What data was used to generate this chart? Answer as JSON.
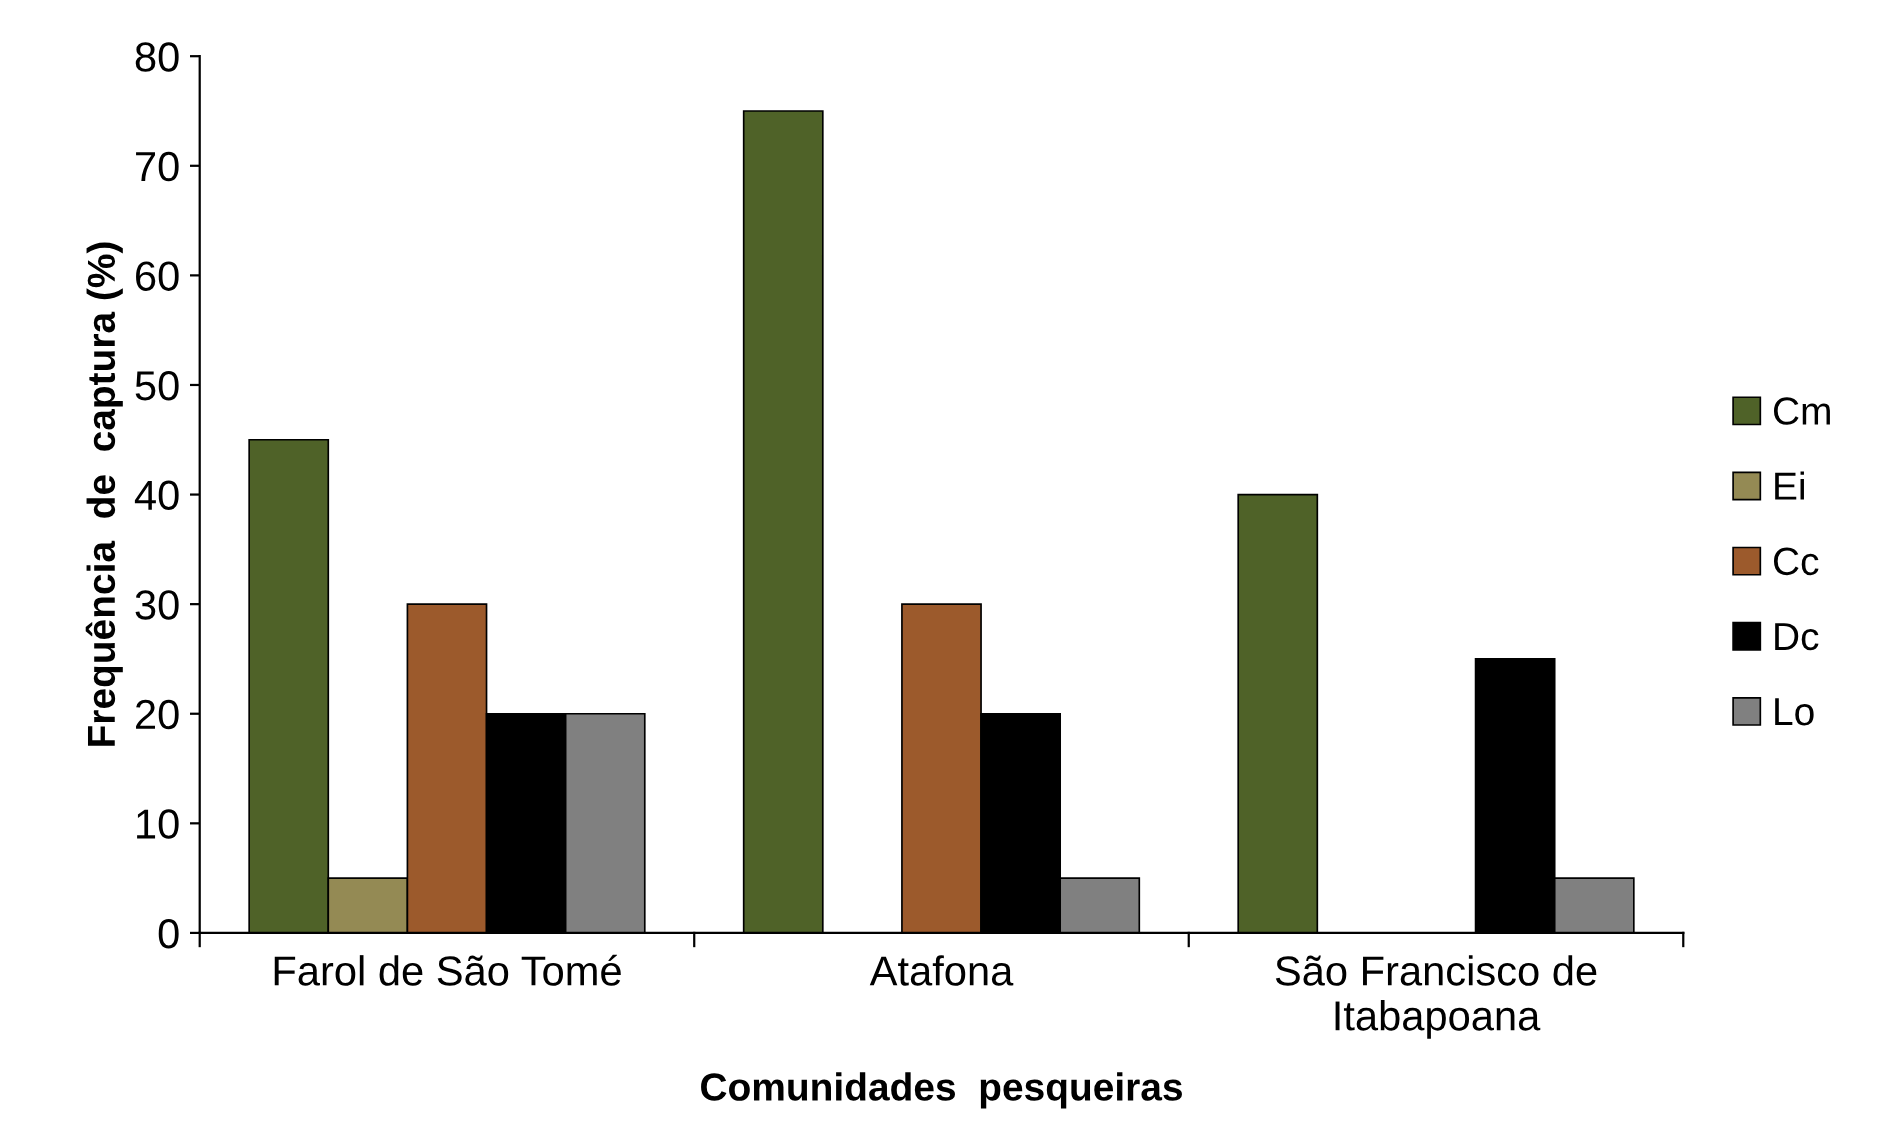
{
  "chart_data": {
    "type": "bar",
    "xlabel": "Comunidades  pesqueiras",
    "ylabel": "Frequência  de  captura (%)",
    "categories": [
      "Farol de São Tomé",
      "Atafona",
      "São Francisco de\nItabapoana"
    ],
    "series": [
      {
        "name": "Cm",
        "color": "#4f6228",
        "values": [
          45,
          75,
          40
        ]
      },
      {
        "name": "Ei",
        "color": "#948a54",
        "values": [
          5,
          null,
          null
        ]
      },
      {
        "name": "Cc",
        "color": "#9c5a2c",
        "values": [
          30,
          30,
          null
        ]
      },
      {
        "name": "Dc",
        "color": "#000000",
        "values": [
          20,
          20,
          25
        ]
      },
      {
        "name": "Lo",
        "color": "#808080",
        "values": [
          20,
          5,
          5
        ]
      }
    ],
    "ylim": [
      0,
      80
    ],
    "yticks": [
      0,
      10,
      20,
      30,
      40,
      50,
      60,
      70,
      80
    ],
    "grid": false,
    "legend": "right"
  }
}
